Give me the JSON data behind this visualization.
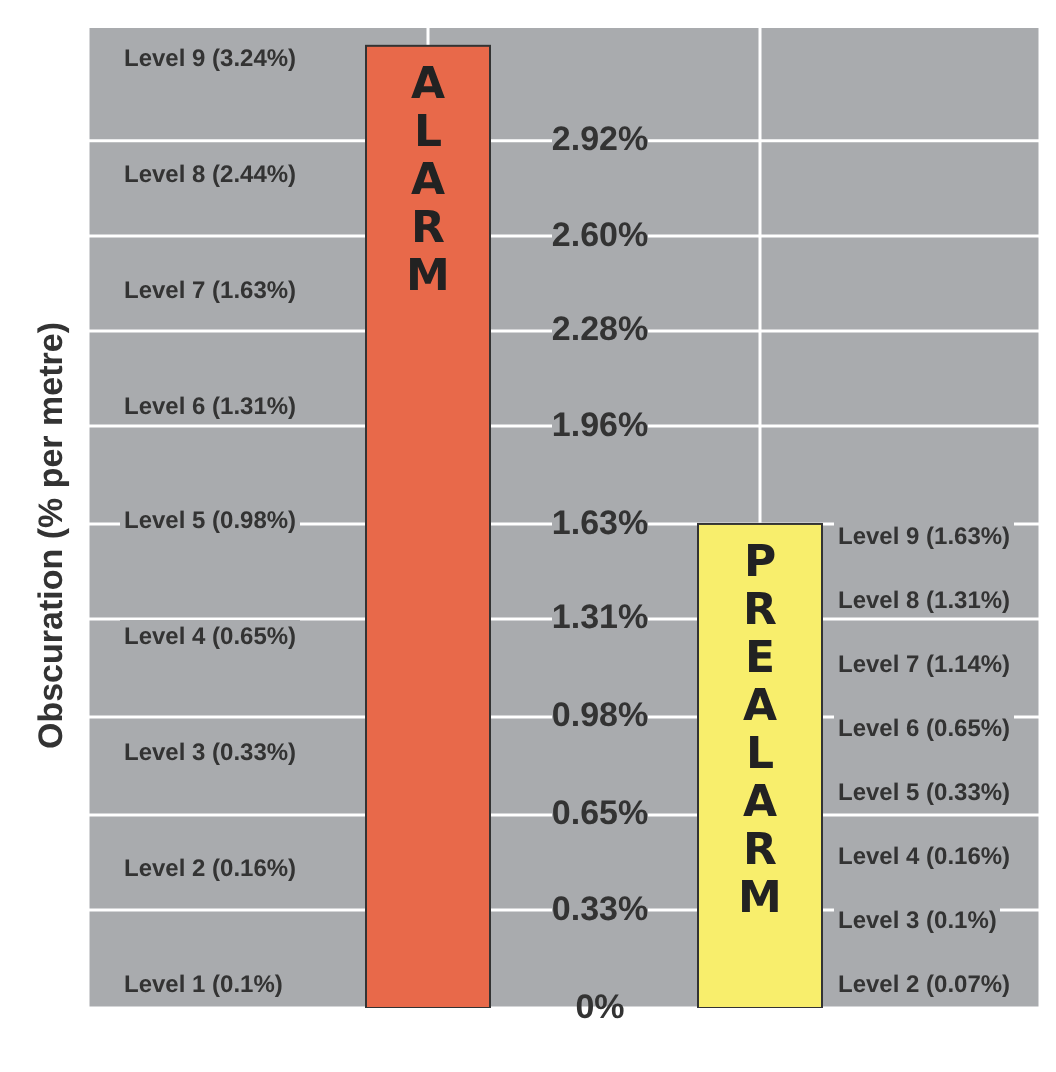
{
  "chart_data": {
    "type": "bar",
    "ylabel": "Obscuration (% per metre)",
    "categories": [
      "ALARM",
      "PREALARM"
    ],
    "values": [
      3.24,
      1.63
    ],
    "colors": [
      "#e8694a",
      "#f8ee6c"
    ],
    "ylim": [
      0,
      3.3
    ],
    "yticks": [
      {
        "value": 0,
        "label": "0%"
      },
      {
        "value": 0.33,
        "label": "0.33%"
      },
      {
        "value": 0.65,
        "label": "0.65%"
      },
      {
        "value": 0.98,
        "label": "0.98%"
      },
      {
        "value": 1.31,
        "label": "1.31%"
      },
      {
        "value": 1.63,
        "label": "1.63%"
      },
      {
        "value": 1.96,
        "label": "1.96%"
      },
      {
        "value": 2.28,
        "label": "2.28%"
      },
      {
        "value": 2.6,
        "label": "2.60%"
      },
      {
        "value": 2.92,
        "label": "2.92%"
      }
    ],
    "grid": true,
    "annotations": [
      "Level 9 (3.24%)",
      "Level 8 (2.44%)",
      "Level 7 (1.63%)",
      "Level 6 (1.31%)",
      "Level 5 (0.98%)",
      "Level 4 (0.65%)",
      "Level 3 (0.33%)",
      "Level 2 (0.16%)",
      "Level 1 (0.1%)",
      "Level 9 (1.63%)",
      "Level 8 (1.31%)",
      "Level 7 (1.14%)",
      "Level 6 (0.65%)",
      "Level 5 (0.33%)",
      "Level 4 (0.16%)",
      "Level 3 (0.1%)",
      "Level 2 (0.07%)"
    ]
  }
}
